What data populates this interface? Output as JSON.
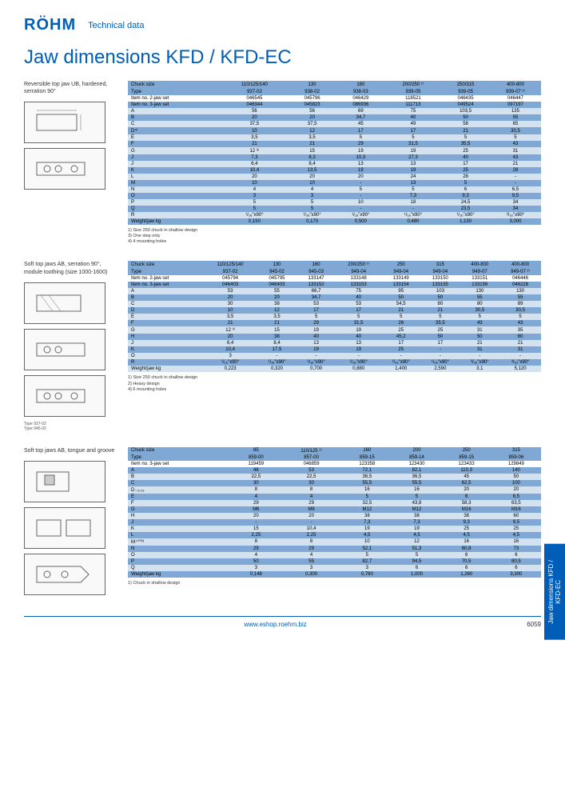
{
  "header": {
    "logo": "RÖHM",
    "subtitle": "Technical data"
  },
  "title": "Jaw dimensions KFD / KFD-EC",
  "sidetab": "Jaw dimensions KFD / KFD-EC",
  "footer": {
    "url": "www.eshop.roehm.biz",
    "pagenum": "6059"
  },
  "sec1": {
    "label": "Reversible top jaw UB, hardened, serration 90°",
    "header_label": "Chuck size",
    "cols": [
      "110/125/140",
      "130",
      "160",
      "200/250 ¹⁾",
      "250/315",
      "400-800"
    ],
    "rows": [
      {
        "c": "dark",
        "label": "Type",
        "v": [
          "937-02",
          "938-02",
          "938-03",
          "939-05",
          "939-05",
          "939-07 ²⁾"
        ]
      },
      {
        "c": "white",
        "label": "Item no. 2-jaw set",
        "v": [
          "046545",
          "045796",
          "046429",
          "118521",
          "046435",
          "046447"
        ]
      },
      {
        "c": "dark",
        "label": "Item no. 3-jaw set",
        "v": [
          "046344",
          "045823",
          "086936",
          "111713",
          "049524",
          "097197"
        ]
      },
      {
        "c": "light",
        "label": "A",
        "v": [
          "56",
          "56",
          "69",
          "75",
          "103,5",
          "135"
        ]
      },
      {
        "c": "dark",
        "label": "B",
        "v": [
          "20",
          "20",
          "34,7",
          "40",
          "50",
          "55"
        ]
      },
      {
        "c": "light",
        "label": "C",
        "v": [
          "37,5",
          "37,5",
          "45",
          "49",
          "58",
          "65"
        ]
      },
      {
        "c": "dark",
        "label": "D⁴⁾",
        "v": [
          "10",
          "12",
          "17",
          "17",
          "21",
          "30,5"
        ]
      },
      {
        "c": "light",
        "label": "E",
        "v": [
          "3,5",
          "3,5",
          "5",
          "5",
          "5",
          "5"
        ]
      },
      {
        "c": "dark",
        "label": "F",
        "v": [
          "21",
          "21",
          "29",
          "31,5",
          "35,5",
          "43"
        ]
      },
      {
        "c": "light",
        "label": "G",
        "v": [
          "12 ³⁾",
          "15",
          "19",
          "19",
          "25",
          "31"
        ]
      },
      {
        "c": "dark",
        "label": "J",
        "v": [
          "7,3",
          "8,3",
          "10,3",
          "27,3",
          "40",
          "43"
        ]
      },
      {
        "c": "light",
        "label": "J",
        "v": [
          "6,4",
          "8,4",
          "13",
          "13",
          "17",
          "21"
        ]
      },
      {
        "c": "dark",
        "label": "K",
        "v": [
          "10,4",
          "13,5",
          "19",
          "19",
          "25",
          "28"
        ]
      },
      {
        "c": "light",
        "label": "L",
        "v": [
          "20",
          "20",
          "20",
          "24",
          "28",
          "-"
        ]
      },
      {
        "c": "dark",
        "label": "M",
        "v": [
          "10",
          "10",
          "-",
          "13",
          "5",
          "-"
        ]
      },
      {
        "c": "light",
        "label": "N",
        "v": [
          "4",
          "4",
          "5",
          "5",
          "6",
          "6,5"
        ]
      },
      {
        "c": "dark",
        "label": "O",
        "v": [
          "3",
          "3",
          "-",
          "7,3",
          "9,3",
          "9,5"
        ]
      },
      {
        "c": "light",
        "label": "P",
        "v": [
          "5",
          "5",
          "10",
          "18",
          "24,5",
          "34"
        ]
      },
      {
        "c": "dark",
        "label": "Q",
        "v": [
          "5",
          "5",
          "-",
          "-",
          "23,5",
          "34"
        ]
      },
      {
        "c": "light",
        "label": "R",
        "v": [
          "¹/₁₆\"x90°",
          "¹/₁₆\"x90°",
          "¹/₁₆\"x90°",
          "¹/₁₆\"x90°",
          "¹/₁₆\"x90°",
          "³/₃₂\"x90°"
        ]
      },
      {
        "c": "dark",
        "label": "Weight/jaw kg",
        "v": [
          "0,150",
          "0,170",
          "0,500",
          "0,480",
          "1,130",
          "3,000"
        ]
      }
    ],
    "notes": "1) Size 250 chuck in shallow design\n3) One step only\n4) 4 mounting holes"
  },
  "sec2": {
    "label": "Soft top jaws AB, serration 90°, module toothing (size 1000-1600)",
    "header_label": "Chuck size",
    "cols": [
      "110/125/140",
      "130",
      "160",
      "200/250 ¹⁾",
      "250",
      "315",
      "400-800",
      "400-800"
    ],
    "rows": [
      {
        "c": "dark",
        "label": "Type",
        "v": [
          "937-02",
          "945-02",
          "945-03",
          "949-04",
          "949-04",
          "949-04",
          "949-07",
          "949-07 ²⁾"
        ]
      },
      {
        "c": "white",
        "label": "Item no. 2-jaw set",
        "v": [
          "045794",
          "045795",
          "133147",
          "133148",
          "133149",
          "133150",
          "133151",
          "046446"
        ]
      },
      {
        "c": "dark",
        "label": "Item no. 3-jaw set",
        "v": [
          "046403",
          "046403",
          "133152",
          "133153",
          "133154",
          "133155",
          "133156",
          "046228"
        ]
      },
      {
        "c": "light",
        "label": "A",
        "v": [
          "53",
          "55",
          "66,7",
          "75",
          "95",
          "103",
          "130",
          "130"
        ]
      },
      {
        "c": "dark",
        "label": "B",
        "v": [
          "20",
          "20",
          "34,7",
          "40",
          "50",
          "50",
          "55",
          "55"
        ]
      },
      {
        "c": "light",
        "label": "C",
        "v": [
          "30",
          "38",
          "53",
          "53",
          "54,5",
          "80",
          "80",
          "89"
        ]
      },
      {
        "c": "dark",
        "label": "D",
        "v": [
          "10",
          "12",
          "17",
          "17",
          "21",
          "21",
          "30,5",
          "30,5"
        ]
      },
      {
        "c": "light",
        "label": "E",
        "v": [
          "3,5",
          "3,5",
          "5",
          "5",
          "5",
          "5",
          "5",
          "5"
        ]
      },
      {
        "c": "dark",
        "label": "F",
        "v": [
          "21",
          "21",
          "29",
          "31,5",
          "26",
          "35,5",
          "43",
          "43"
        ]
      },
      {
        "c": "light",
        "label": "G",
        "v": [
          "12 ³⁾",
          "15",
          "19",
          "19",
          "25",
          "25",
          "31",
          "35"
        ]
      },
      {
        "c": "dark",
        "label": "H",
        "v": [
          "20",
          "38",
          "40",
          "40",
          "45,2",
          "50",
          "50",
          "60"
        ]
      },
      {
        "c": "light",
        "label": "J",
        "v": [
          "6,4",
          "8,4",
          "13",
          "13",
          "17",
          "17",
          "21",
          "21"
        ]
      },
      {
        "c": "dark",
        "label": "K",
        "v": [
          "10,4",
          "17,5",
          "19",
          "19",
          "25",
          "-",
          "31",
          "31"
        ]
      },
      {
        "c": "light",
        "label": "O",
        "v": [
          "3",
          "-",
          "-",
          "-",
          "-",
          "-",
          "-",
          "-"
        ]
      },
      {
        "c": "dark",
        "label": "R",
        "v": [
          "¹/₁₆\"x90°",
          "¹/₁₆\"x90°",
          "¹/₁₆\"x90°",
          "¹/₁₆\"x90°",
          "¹/₁₆\"x90°",
          "¹/₁₆\"x90°",
          "³/₃₂\"x90°",
          "³/₃₂\"x90°"
        ]
      },
      {
        "c": "light",
        "label": "Weight/jaw kg",
        "v": [
          "0,223",
          "0,320",
          "0,700",
          "0,880",
          "1,400",
          "2,590",
          "3,1",
          "5,120"
        ]
      }
    ],
    "notes": "1) Size 250 chuck in shallow design\n2) Heavy design\n4) 6 mounting holes",
    "caption": "Type 937-02\nType 945-02"
  },
  "sec3": {
    "label": "Soft top jaws AB, tongue and groove",
    "header_label": "Chuck size",
    "cols": [
      "85",
      "110/125 ¹⁾",
      "160",
      "200",
      "250",
      "315"
    ],
    "rows": [
      {
        "c": "dark",
        "label": "Type",
        "v": [
          "859-00",
          "857-00",
          "859-15",
          "859-14",
          "859-15",
          "859-06"
        ]
      },
      {
        "c": "white",
        "label": "Item no. 3-jaw set",
        "v": [
          "119459",
          "046859",
          "123358",
          "123430",
          "123433",
          "129849"
        ]
      },
      {
        "c": "dark",
        "label": "A",
        "v": [
          "46",
          "53",
          "72,1",
          "82,1",
          "110,3",
          "140"
        ]
      },
      {
        "c": "light",
        "label": "B",
        "v": [
          "22,5",
          "22,5",
          "36,5",
          "36,5",
          "45",
          "50"
        ]
      },
      {
        "c": "dark",
        "label": "C",
        "v": [
          "30",
          "30",
          "55,5",
          "55,5",
          "62,5",
          "100"
        ]
      },
      {
        "c": "light",
        "label": "D₋₀,₀₃",
        "v": [
          "8",
          "8",
          "16",
          "16",
          "20",
          "20"
        ]
      },
      {
        "c": "dark",
        "label": "E",
        "v": [
          "4",
          "4",
          "5",
          "5",
          "6",
          "6,5"
        ]
      },
      {
        "c": "light",
        "label": "F",
        "v": [
          "29",
          "29",
          "32,5",
          "43,8",
          "58,3",
          "63,5"
        ]
      },
      {
        "c": "dark",
        "label": "G",
        "v": [
          "M6",
          "M6",
          "M12",
          "M12",
          "M16",
          "M16"
        ]
      },
      {
        "c": "light",
        "label": "H",
        "v": [
          "20",
          "20",
          "38",
          "38",
          "38",
          "60"
        ]
      },
      {
        "c": "dark",
        "label": "J",
        "v": [
          "-",
          "-",
          "7,3",
          "7,3",
          "9,3",
          "9,5"
        ]
      },
      {
        "c": "light",
        "label": "K",
        "v": [
          "15",
          "10,4",
          "19",
          "19",
          "25",
          "25"
        ]
      },
      {
        "c": "dark",
        "label": "L",
        "v": [
          "2,25",
          "2,25",
          "4,5",
          "4,5",
          "4,5",
          "4,5"
        ]
      },
      {
        "c": "light",
        "label": "M⁺⁰′⁰³",
        "v": [
          "8",
          "8",
          "10",
          "12",
          "16",
          "16"
        ]
      },
      {
        "c": "dark",
        "label": "N",
        "v": [
          "29",
          "29",
          "52,1",
          "51,3",
          "60,8",
          "73"
        ]
      },
      {
        "c": "light",
        "label": "O",
        "v": [
          "4",
          "4",
          "5",
          "5",
          "6",
          "6"
        ]
      },
      {
        "c": "dark",
        "label": "P",
        "v": [
          "50",
          "55",
          "82,7",
          "94,5",
          "70,5",
          "80,5"
        ]
      },
      {
        "c": "light",
        "label": "Q",
        "v": [
          "3",
          "3",
          "3",
          "6",
          "6",
          "6"
        ]
      },
      {
        "c": "dark",
        "label": "Weight/jaw kg",
        "v": [
          "0,148",
          "0,300",
          "0,780",
          "1,000",
          "1,260",
          "3,300"
        ]
      }
    ],
    "notes": "1) Chuck in shallow design"
  }
}
